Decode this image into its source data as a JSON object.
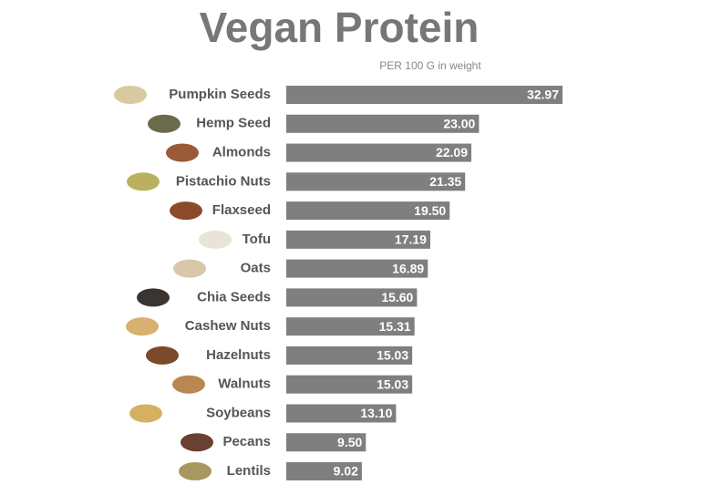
{
  "chart_data": {
    "type": "hbar",
    "title": "Vegan Protein",
    "subtitle": "PER 100 G in weight",
    "categories": [
      "Pumpkin Seeds",
      "Hemp Seed",
      "Almonds",
      "Pistachio Nuts",
      "Flaxseed",
      "Tofu",
      "Oats",
      "Chia Seeds",
      "Cashew Nuts",
      "Hazelnuts",
      "Walnuts",
      "Soybeans",
      "Pecans",
      "Lentils"
    ],
    "values": [
      32.97,
      23,
      22.09,
      21.35,
      19.5,
      17.19,
      16.89,
      15.6,
      15.31,
      15.03,
      15.03,
      13.1,
      9.5,
      9.02
    ],
    "value_labels": [
      "32.97",
      "23.00",
      "22.09",
      "21.35",
      "19.50",
      "17.19",
      "16.89",
      "15.60",
      "15.31",
      "15.03",
      "15.03",
      "13.10",
      "9.50",
      "9.02"
    ],
    "color": "#7f7f7f"
  }
}
